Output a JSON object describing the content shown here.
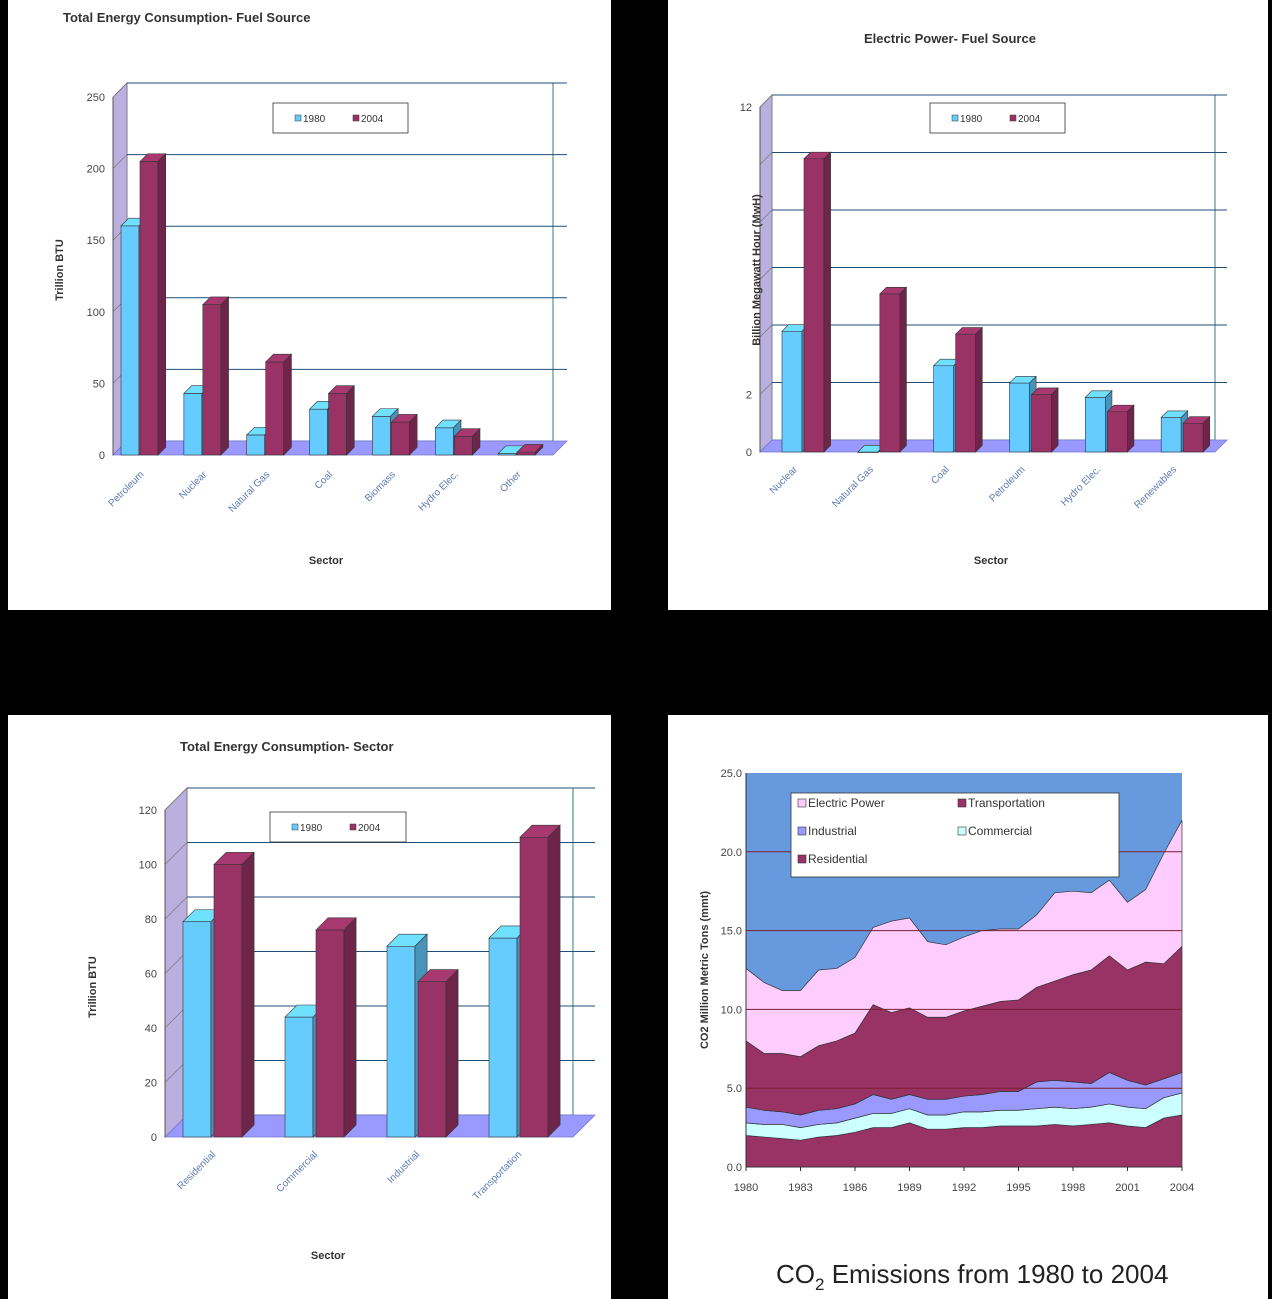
{
  "colors": {
    "c1980": "#66ccff",
    "c2004": "#993366",
    "floor": "#9999ff",
    "grid": "#1f4e79"
  },
  "chart_data": [
    {
      "type": "bar",
      "title": "Total Energy Consumption- Fuel Source",
      "xlabel": "Sector",
      "ylabel": "Trillion BTU",
      "ylim": [
        0,
        250
      ],
      "yticks": [
        "0",
        "50",
        "100",
        "150",
        "200",
        "250"
      ],
      "categories": [
        "Petroleum",
        "Nuclear",
        "Natural Gas",
        "Coal",
        "Biomass",
        "Hydro Elec.",
        "Other"
      ],
      "series": [
        {
          "name": "1980",
          "values": [
            160,
            43,
            14,
            32,
            27,
            19,
            1
          ]
        },
        {
          "name": "2004",
          "values": [
            205,
            105,
            65,
            43,
            23,
            13,
            2
          ]
        }
      ],
      "legend_position": "top"
    },
    {
      "type": "bar",
      "title": "Electric Power- Fuel Source",
      "xlabel": "Sector",
      "ylabel": "Billion Megawatt Hour (MwH)",
      "ylim": [
        0,
        12
      ],
      "yticks": [
        "0",
        "2",
        "",
        "",
        "",
        "",
        "12"
      ],
      "categories": [
        "Nuclear",
        "Natural Gas",
        "Coal",
        "Petroleum",
        "Hydro Elec.",
        "Renewables"
      ],
      "series": [
        {
          "name": "1980",
          "values": [
            4.2,
            0,
            3.0,
            2.4,
            1.9,
            1.2
          ]
        },
        {
          "name": "2004",
          "values": [
            10.2,
            5.5,
            4.1,
            2.0,
            1.4,
            1.0
          ]
        }
      ],
      "legend_position": "top"
    },
    {
      "type": "bar",
      "title": "Total Energy Consumption- Sector",
      "xlabel": "Sector",
      "ylabel": "Trillion BTU",
      "ylim": [
        0,
        120
      ],
      "yticks": [
        "0",
        "20",
        "40",
        "60",
        "80",
        "100",
        "120"
      ],
      "categories": [
        "Residential",
        "Commercial",
        "Industrial",
        "Transportation"
      ],
      "series": [
        {
          "name": "1980",
          "values": [
            79,
            44,
            70,
            73
          ]
        },
        {
          "name": "2004",
          "values": [
            100,
            76,
            57,
            110
          ]
        }
      ],
      "legend_position": "top"
    },
    {
      "type": "area",
      "title": "",
      "xlabel": "",
      "ylabel": "CO2 Million Metric Tons (mmt)",
      "ylim": [
        0,
        25
      ],
      "yticks": [
        "0.0",
        "5.0",
        "10.0",
        "15.0",
        "20.0",
        "25.0"
      ],
      "xticks": [
        "1980",
        "1983",
        "1986",
        "1989",
        "1992",
        "1995",
        "1998",
        "2001",
        "2004"
      ],
      "x": [
        1980,
        1981,
        1982,
        1983,
        1984,
        1985,
        1986,
        1987,
        1988,
        1989,
        1990,
        1991,
        1992,
        1993,
        1994,
        1995,
        1996,
        1997,
        1998,
        1999,
        2000,
        2001,
        2002,
        2003,
        2004
      ],
      "series": [
        {
          "name": "Residential",
          "color": "#993366",
          "values": [
            2.0,
            1.9,
            1.8,
            1.7,
            1.9,
            2.0,
            2.2,
            2.5,
            2.5,
            2.8,
            2.4,
            2.4,
            2.5,
            2.5,
            2.6,
            2.6,
            2.6,
            2.7,
            2.6,
            2.7,
            2.8,
            2.6,
            2.5,
            3.1,
            3.3
          ]
        },
        {
          "name": "Commercial",
          "color": "#ccffff",
          "values": [
            0.8,
            0.8,
            0.9,
            0.8,
            0.8,
            0.8,
            0.9,
            0.9,
            0.9,
            0.9,
            0.9,
            0.9,
            1.0,
            1.0,
            1.0,
            1.0,
            1.1,
            1.1,
            1.1,
            1.1,
            1.2,
            1.2,
            1.2,
            1.3,
            1.4
          ]
        },
        {
          "name": "Industrial",
          "color": "#9999ff",
          "values": [
            1.0,
            0.9,
            0.8,
            0.8,
            0.9,
            0.9,
            0.9,
            1.2,
            0.9,
            0.9,
            1.0,
            1.0,
            1.0,
            1.1,
            1.2,
            1.2,
            1.7,
            1.7,
            1.7,
            1.5,
            2.0,
            1.7,
            1.5,
            1.2,
            1.3
          ]
        },
        {
          "name": "Transportation",
          "color": "#993366",
          "values": [
            4.2,
            3.6,
            3.7,
            3.7,
            4.1,
            4.3,
            4.5,
            5.7,
            5.5,
            5.5,
            5.2,
            5.2,
            5.4,
            5.6,
            5.7,
            5.8,
            6.0,
            6.3,
            6.8,
            7.2,
            7.4,
            7.0,
            7.8,
            7.3,
            8.0
          ]
        },
        {
          "name": "Electric Power",
          "color": "#ffccff",
          "values": [
            4.6,
            4.5,
            4.0,
            4.2,
            4.8,
            4.6,
            4.8,
            4.9,
            5.8,
            5.7,
            4.8,
            4.6,
            4.7,
            4.8,
            4.6,
            4.5,
            4.6,
            5.6,
            5.3,
            4.9,
            4.8,
            4.3,
            4.6,
            7.0,
            8.0
          ]
        }
      ],
      "legend_position": "top"
    }
  ],
  "footer_caption": {
    "pre": "CO",
    "sub": "2",
    "post": " Emissions from 1980 to 2004"
  }
}
